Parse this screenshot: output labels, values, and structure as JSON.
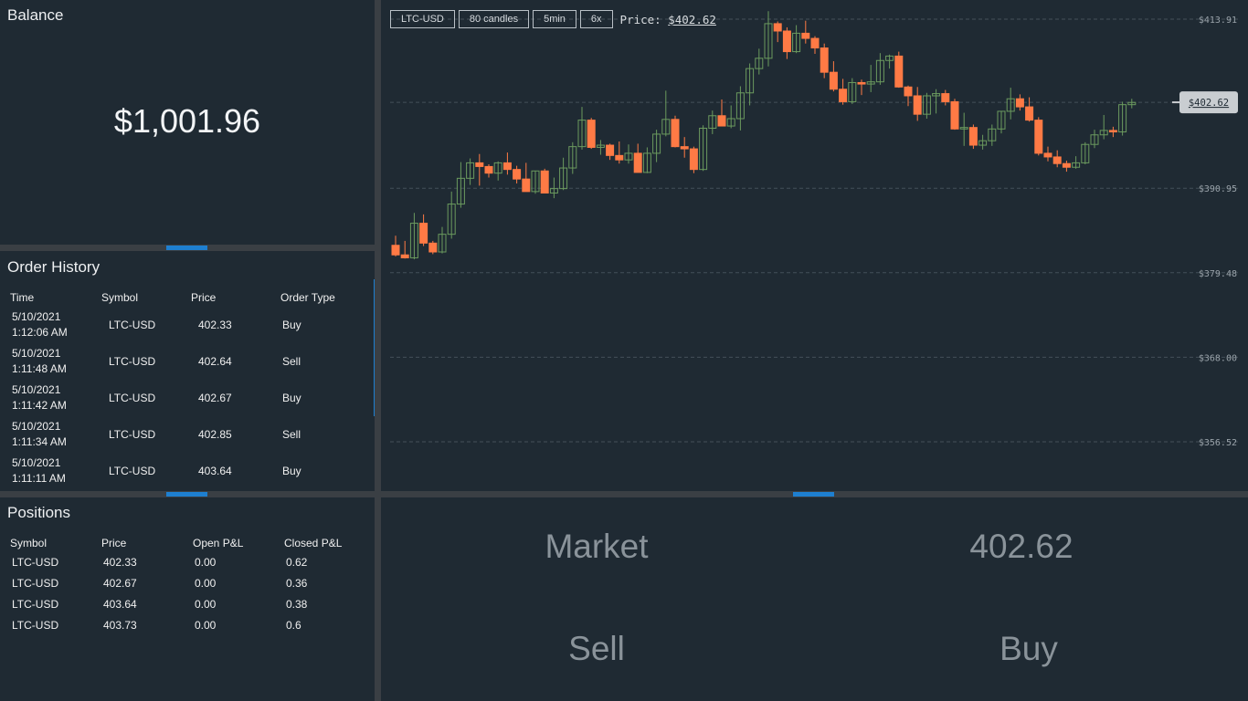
{
  "balance": {
    "title": "Balance",
    "value": "$1,001.96"
  },
  "orders": {
    "title": "Order History",
    "headers": [
      "Time",
      "Symbol",
      "Price",
      "Order Type"
    ],
    "rows": [
      {
        "time": "5/10/2021 1:12:06 AM",
        "symbol": "LTC-USD",
        "price": "402.33",
        "type": "Buy"
      },
      {
        "time": "5/10/2021 1:11:48 AM",
        "symbol": "LTC-USD",
        "price": "402.64",
        "type": "Sell"
      },
      {
        "time": "5/10/2021 1:11:42 AM",
        "symbol": "LTC-USD",
        "price": "402.67",
        "type": "Buy"
      },
      {
        "time": "5/10/2021 1:11:34 AM",
        "symbol": "LTC-USD",
        "price": "402.85",
        "type": "Sell"
      },
      {
        "time": "5/10/2021 1:11:11 AM",
        "symbol": "LTC-USD",
        "price": "403.64",
        "type": "Buy"
      }
    ]
  },
  "positions": {
    "title": "Positions",
    "headers": [
      "Symbol",
      "Price",
      "Open P&L",
      "Closed P&L"
    ],
    "rows": [
      {
        "symbol": "LTC-USD",
        "price": "402.33",
        "open": "0.00",
        "closed": "0.62"
      },
      {
        "symbol": "LTC-USD",
        "price": "402.67",
        "open": "0.00",
        "closed": "0.36"
      },
      {
        "symbol": "LTC-USD",
        "price": "403.64",
        "open": "0.00",
        "closed": "0.38"
      },
      {
        "symbol": "LTC-USD",
        "price": "403.73",
        "open": "0.00",
        "closed": "0.6"
      }
    ]
  },
  "toolbar": {
    "symbol": "LTC-USD",
    "candles": "80 candles",
    "interval": "5min",
    "zoom": "6x",
    "price_label": "Price:",
    "price_value": "$402.62"
  },
  "trade": {
    "market_label": "Market",
    "market_value": "402.62",
    "sell_label": "Sell",
    "buy_label": "Buy"
  },
  "chart_data": {
    "type": "candlestick",
    "colors": {
      "up": "#6b9a5e",
      "down": "#ff7a45",
      "grid": "#44505a",
      "axis_text": "#9aa3aa"
    },
    "y_ticks": [
      "$413.91",
      "$390.95",
      "$379.48",
      "$368.00",
      "$356.52"
    ],
    "y_tick_values": [
      413.91,
      390.95,
      379.48,
      368.0,
      356.52
    ],
    "last_price": 402.62,
    "last_price_label": "$402.62",
    "candles": [
      [
        383.2,
        384.5,
        381.7,
        381.9
      ],
      [
        381.9,
        383.8,
        381.4,
        381.5
      ],
      [
        381.5,
        387.6,
        381.3,
        386.2
      ],
      [
        386.2,
        387.4,
        383.1,
        383.5
      ],
      [
        383.5,
        383.8,
        382.0,
        382.3
      ],
      [
        382.3,
        385.7,
        382.1,
        384.7
      ],
      [
        384.7,
        390.5,
        384.1,
        388.8
      ],
      [
        388.8,
        394.5,
        388.3,
        392.3
      ],
      [
        392.3,
        395.0,
        391.4,
        394.4
      ],
      [
        394.4,
        395.6,
        391.3,
        393.9
      ],
      [
        393.9,
        394.2,
        392.4,
        393.0
      ],
      [
        393.0,
        394.6,
        392.0,
        394.4
      ],
      [
        394.4,
        395.8,
        392.8,
        393.5
      ],
      [
        393.5,
        394.0,
        391.6,
        392.2
      ],
      [
        392.2,
        394.4,
        390.8,
        390.5
      ],
      [
        390.5,
        393.3,
        390.2,
        393.3
      ],
      [
        393.3,
        393.6,
        390.5,
        390.3
      ],
      [
        390.3,
        392.4,
        389.6,
        390.9
      ],
      [
        390.9,
        395.1,
        390.7,
        393.7
      ],
      [
        393.7,
        397.2,
        392.9,
        396.6
      ],
      [
        396.6,
        402.0,
        396.2,
        400.2
      ],
      [
        400.2,
        400.5,
        396.3,
        396.5
      ],
      [
        396.5,
        397.5,
        395.5,
        396.8
      ],
      [
        396.8,
        397.0,
        394.8,
        395.4
      ],
      [
        395.4,
        397.3,
        394.3,
        394.8
      ],
      [
        394.8,
        396.9,
        394.3,
        395.7
      ],
      [
        395.7,
        397.0,
        393.4,
        393.1
      ],
      [
        393.1,
        396.5,
        393.0,
        395.7
      ],
      [
        395.7,
        398.9,
        394.5,
        398.3
      ],
      [
        398.3,
        404.2,
        398.0,
        400.3
      ],
      [
        400.3,
        400.8,
        396.5,
        396.6
      ],
      [
        396.6,
        397.9,
        395.1,
        396.3
      ],
      [
        396.3,
        396.6,
        393.0,
        393.5
      ],
      [
        393.5,
        399.5,
        393.3,
        399.1
      ],
      [
        399.1,
        401.5,
        398.3,
        400.8
      ],
      [
        400.8,
        403.0,
        399.5,
        399.4
      ],
      [
        399.4,
        402.2,
        399.1,
        400.4
      ],
      [
        400.4,
        404.8,
        398.8,
        403.9
      ],
      [
        403.9,
        407.9,
        402.2,
        407.2
      ],
      [
        407.2,
        409.9,
        406.4,
        408.6
      ],
      [
        408.6,
        415.0,
        407.5,
        413.3
      ],
      [
        413.3,
        413.6,
        410.8,
        412.3
      ],
      [
        412.3,
        412.8,
        408.5,
        409.5
      ],
      [
        409.5,
        413.1,
        409.3,
        412.0
      ],
      [
        412.0,
        413.7,
        410.6,
        411.3
      ],
      [
        411.3,
        411.6,
        409.2,
        410.0
      ],
      [
        410.0,
        410.6,
        405.9,
        406.7
      ],
      [
        406.7,
        408.2,
        404.1,
        404.4
      ],
      [
        404.4,
        405.8,
        402.3,
        402.7
      ],
      [
        402.7,
        405.9,
        402.4,
        405.3
      ],
      [
        405.3,
        405.7,
        403.6,
        405.1
      ],
      [
        405.1,
        407.7,
        404.0,
        405.4
      ],
      [
        405.4,
        409.3,
        405.0,
        408.3
      ],
      [
        408.3,
        409.1,
        407.2,
        408.9
      ],
      [
        408.9,
        409.5,
        404.6,
        404.7
      ],
      [
        404.7,
        404.9,
        402.1,
        403.5
      ],
      [
        403.5,
        404.7,
        400.1,
        401.0
      ],
      [
        401.0,
        403.9,
        400.4,
        403.5
      ],
      [
        403.5,
        404.4,
        401.1,
        403.8
      ],
      [
        403.8,
        404.3,
        402.2,
        402.7
      ],
      [
        402.7,
        403.1,
        398.9,
        399.0
      ],
      [
        399.0,
        401.2,
        396.7,
        399.2
      ],
      [
        399.2,
        399.6,
        396.3,
        396.8
      ],
      [
        396.8,
        398.2,
        396.2,
        397.4
      ],
      [
        397.4,
        399.6,
        396.7,
        399.0
      ],
      [
        399.0,
        401.4,
        398.4,
        401.4
      ],
      [
        401.4,
        404.6,
        400.3,
        403.1
      ],
      [
        403.1,
        403.7,
        401.5,
        402.0
      ],
      [
        402.0,
        403.3,
        400.0,
        400.2
      ],
      [
        400.2,
        400.6,
        395.4,
        395.7
      ],
      [
        395.7,
        396.6,
        394.6,
        395.2
      ],
      [
        395.2,
        396.1,
        393.8,
        394.3
      ],
      [
        394.3,
        394.7,
        393.2,
        393.8
      ],
      [
        393.8,
        395.3,
        393.6,
        394.4
      ],
      [
        394.4,
        397.2,
        394.2,
        396.9
      ],
      [
        396.9,
        398.9,
        396.4,
        398.2
      ],
      [
        398.2,
        400.9,
        397.6,
        398.8
      ],
      [
        398.8,
        399.3,
        397.9,
        398.6
      ],
      [
        398.6,
        402.7,
        398.1,
        402.3
      ],
      [
        402.3,
        403.1,
        401.8,
        402.6
      ]
    ]
  }
}
